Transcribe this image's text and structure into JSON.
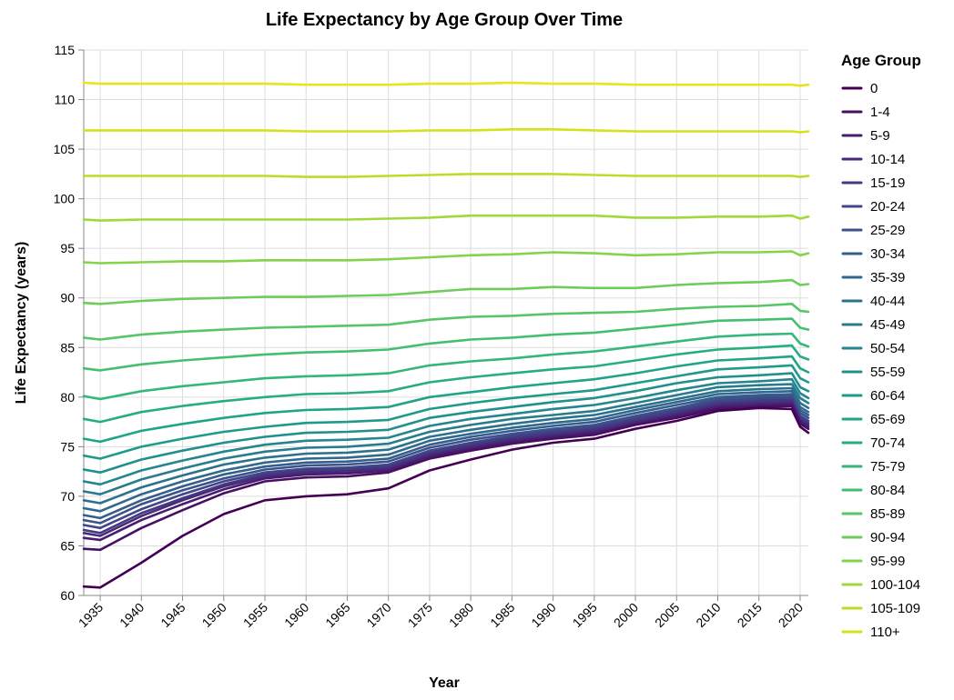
{
  "chart_data": {
    "type": "line",
    "title": "Life Expectancy by Age Group Over Time",
    "xlabel": "Year",
    "ylabel": "Life Expectancy (years)",
    "xlim": [
      1933,
      2021
    ],
    "ylim": [
      60,
      115
    ],
    "x_ticks": [
      1935,
      1940,
      1945,
      1950,
      1955,
      1960,
      1965,
      1970,
      1975,
      1980,
      1985,
      1990,
      1995,
      2000,
      2005,
      2010,
      2015,
      2020
    ],
    "y_ticks": [
      60,
      65,
      70,
      75,
      80,
      85,
      90,
      95,
      100,
      105,
      110,
      115
    ],
    "grid": true,
    "legend": {
      "title": "Age Group",
      "position": "right"
    },
    "x": [
      1933,
      1935,
      1940,
      1945,
      1950,
      1955,
      1960,
      1965,
      1970,
      1975,
      1980,
      1985,
      1990,
      1995,
      2000,
      2005,
      2010,
      2015,
      2019,
      2020,
      2021
    ],
    "series": [
      {
        "name": "0",
        "color": "#440154",
        "values": [
          60.9,
          60.8,
          63.3,
          66.0,
          68.2,
          69.6,
          70.0,
          70.2,
          70.8,
          72.6,
          73.7,
          74.7,
          75.4,
          75.8,
          76.8,
          77.6,
          78.6,
          78.9,
          78.8,
          77.0,
          76.4
        ]
      },
      {
        "name": "1-4",
        "color": "#471063",
        "values": [
          64.7,
          64.6,
          66.8,
          68.6,
          70.3,
          71.5,
          71.9,
          72.0,
          72.4,
          73.8,
          74.6,
          75.3,
          75.8,
          76.2,
          77.2,
          77.9,
          78.8,
          79.0,
          79.1,
          77.3,
          76.8
        ]
      },
      {
        "name": "5-9",
        "color": "#481d6f",
        "values": [
          65.8,
          65.6,
          67.6,
          69.2,
          70.7,
          71.8,
          72.2,
          72.3,
          72.6,
          74.0,
          74.8,
          75.5,
          76.0,
          76.4,
          77.3,
          78.1,
          79.0,
          79.2,
          79.3,
          77.5,
          77.0
        ]
      },
      {
        "name": "10-14",
        "color": "#472c7a",
        "values": [
          66.3,
          66.0,
          68.0,
          69.6,
          71.0,
          72.0,
          72.4,
          72.5,
          72.8,
          74.2,
          75.0,
          75.7,
          76.2,
          76.6,
          77.5,
          78.3,
          79.2,
          79.4,
          79.5,
          77.7,
          77.2
        ]
      },
      {
        "name": "15-19",
        "color": "#443983",
        "values": [
          66.6,
          66.3,
          68.3,
          69.8,
          71.2,
          72.2,
          72.6,
          72.7,
          73.0,
          74.4,
          75.2,
          75.9,
          76.4,
          76.8,
          77.7,
          78.5,
          79.4,
          79.6,
          79.7,
          77.9,
          77.4
        ]
      },
      {
        "name": "20-24",
        "color": "#3f4788",
        "values": [
          67.1,
          66.8,
          68.7,
          70.2,
          71.5,
          72.4,
          72.8,
          72.9,
          73.2,
          74.6,
          75.4,
          76.1,
          76.6,
          77.0,
          77.9,
          78.7,
          79.6,
          79.8,
          79.9,
          78.1,
          77.6
        ]
      },
      {
        "name": "25-29",
        "color": "#3b528b",
        "values": [
          67.6,
          67.3,
          69.2,
          70.6,
          71.8,
          72.7,
          73.1,
          73.2,
          73.5,
          74.9,
          75.7,
          76.3,
          76.8,
          77.2,
          78.1,
          78.9,
          79.8,
          80.0,
          80.1,
          78.4,
          77.9
        ]
      },
      {
        "name": "30-34",
        "color": "#355e8d",
        "values": [
          68.1,
          67.8,
          69.6,
          71.0,
          72.2,
          73.0,
          73.4,
          73.5,
          73.8,
          75.2,
          76.0,
          76.6,
          77.1,
          77.5,
          78.4,
          79.2,
          80.0,
          80.2,
          80.3,
          78.7,
          78.2
        ]
      },
      {
        "name": "35-39",
        "color": "#31688e",
        "values": [
          68.8,
          68.5,
          70.2,
          71.5,
          72.6,
          73.4,
          73.8,
          73.9,
          74.2,
          75.6,
          76.3,
          76.9,
          77.4,
          77.8,
          78.7,
          79.5,
          80.3,
          80.5,
          80.6,
          79.0,
          78.5
        ]
      },
      {
        "name": "40-44",
        "color": "#2c728e",
        "values": [
          69.6,
          69.3,
          70.9,
          72.1,
          73.2,
          73.9,
          74.3,
          74.4,
          74.7,
          76.0,
          76.7,
          77.3,
          77.8,
          78.2,
          79.0,
          79.8,
          80.6,
          80.8,
          80.9,
          79.4,
          78.9
        ]
      },
      {
        "name": "45-49",
        "color": "#287c8e",
        "values": [
          70.5,
          70.2,
          71.7,
          72.8,
          73.8,
          74.5,
          74.9,
          75.0,
          75.3,
          76.5,
          77.2,
          77.8,
          78.2,
          78.6,
          79.4,
          80.2,
          81.0,
          81.2,
          81.3,
          79.9,
          79.4
        ]
      },
      {
        "name": "50-54",
        "color": "#24868e",
        "values": [
          71.5,
          71.2,
          72.6,
          73.6,
          74.5,
          75.2,
          75.6,
          75.7,
          75.9,
          77.1,
          77.8,
          78.3,
          78.8,
          79.2,
          79.9,
          80.7,
          81.4,
          81.6,
          81.8,
          80.4,
          79.9
        ]
      },
      {
        "name": "55-59",
        "color": "#21908c",
        "values": [
          72.7,
          72.4,
          73.7,
          74.6,
          75.4,
          76.0,
          76.4,
          76.5,
          76.7,
          77.9,
          78.5,
          79.0,
          79.5,
          79.9,
          80.6,
          81.4,
          82.0,
          82.2,
          82.4,
          81.0,
          80.6
        ]
      },
      {
        "name": "60-64",
        "color": "#1f9a8a",
        "values": [
          74.1,
          73.8,
          75.0,
          75.8,
          76.5,
          77.0,
          77.4,
          77.5,
          77.7,
          78.8,
          79.4,
          79.9,
          80.3,
          80.7,
          81.4,
          82.1,
          82.8,
          83.0,
          83.2,
          81.9,
          81.5
        ]
      },
      {
        "name": "65-69",
        "color": "#20a486",
        "values": [
          75.8,
          75.5,
          76.6,
          77.3,
          77.9,
          78.4,
          78.7,
          78.8,
          79.0,
          80.0,
          80.5,
          81.0,
          81.4,
          81.8,
          82.4,
          83.1,
          83.7,
          83.9,
          84.1,
          82.9,
          82.5
        ]
      },
      {
        "name": "70-74",
        "color": "#27ad81",
        "values": [
          77.8,
          77.5,
          78.5,
          79.1,
          79.6,
          80.0,
          80.3,
          80.4,
          80.6,
          81.5,
          82.0,
          82.4,
          82.8,
          83.1,
          83.7,
          84.3,
          84.8,
          85.0,
          85.2,
          84.1,
          83.8
        ]
      },
      {
        "name": "75-79",
        "color": "#35b779",
        "values": [
          80.1,
          79.8,
          80.6,
          81.1,
          81.5,
          81.9,
          82.1,
          82.2,
          82.4,
          83.2,
          83.6,
          83.9,
          84.3,
          84.6,
          85.1,
          85.6,
          86.1,
          86.3,
          86.4,
          85.4,
          85.1
        ]
      },
      {
        "name": "80-84",
        "color": "#44bf70",
        "values": [
          82.9,
          82.7,
          83.3,
          83.7,
          84.0,
          84.3,
          84.5,
          84.6,
          84.8,
          85.4,
          85.8,
          86.0,
          86.3,
          86.5,
          86.9,
          87.3,
          87.7,
          87.8,
          87.9,
          87.0,
          86.8
        ]
      },
      {
        "name": "85-89",
        "color": "#56c667",
        "values": [
          86.0,
          85.8,
          86.3,
          86.6,
          86.8,
          87.0,
          87.1,
          87.2,
          87.3,
          87.8,
          88.1,
          88.2,
          88.4,
          88.5,
          88.6,
          88.9,
          89.1,
          89.2,
          89.4,
          88.7,
          88.6
        ]
      },
      {
        "name": "90-94",
        "color": "#6ccd5a",
        "values": [
          89.5,
          89.4,
          89.7,
          89.9,
          90.0,
          90.1,
          90.1,
          90.2,
          90.3,
          90.6,
          90.9,
          90.9,
          91.1,
          91.0,
          91.0,
          91.3,
          91.5,
          91.6,
          91.8,
          91.3,
          91.4
        ]
      },
      {
        "name": "95-99",
        "color": "#84d44b",
        "values": [
          93.6,
          93.5,
          93.6,
          93.7,
          93.7,
          93.8,
          93.8,
          93.8,
          93.9,
          94.1,
          94.3,
          94.4,
          94.6,
          94.5,
          94.3,
          94.4,
          94.6,
          94.6,
          94.7,
          94.3,
          94.5
        ]
      },
      {
        "name": "100-104",
        "color": "#9fda3a",
        "values": [
          97.9,
          97.8,
          97.9,
          97.9,
          97.9,
          97.9,
          97.9,
          97.9,
          98.0,
          98.1,
          98.3,
          98.3,
          98.3,
          98.3,
          98.1,
          98.1,
          98.2,
          98.2,
          98.3,
          98.0,
          98.2
        ]
      },
      {
        "name": "105-109",
        "color": "#bade28",
        "values": [
          102.3,
          102.3,
          102.3,
          102.3,
          102.3,
          102.3,
          102.2,
          102.2,
          102.3,
          102.4,
          102.5,
          102.5,
          102.5,
          102.4,
          102.3,
          102.3,
          102.3,
          102.3,
          102.3,
          102.2,
          102.3
        ]
      },
      {
        "name": "110+",
        "color": "#d5e21a",
        "values": [
          106.9,
          106.9,
          106.9,
          106.9,
          106.9,
          106.9,
          106.8,
          106.8,
          106.8,
          106.9,
          106.9,
          107.0,
          107.0,
          106.9,
          106.8,
          106.8,
          106.8,
          106.8,
          106.8,
          106.7,
          106.8
        ]
      },
      {
        "name": "",
        "color": "#e8e419",
        "values": [
          111.7,
          111.6,
          111.6,
          111.6,
          111.6,
          111.6,
          111.5,
          111.5,
          111.5,
          111.6,
          111.6,
          111.7,
          111.6,
          111.6,
          111.5,
          111.5,
          111.5,
          111.5,
          111.5,
          111.4,
          111.5
        ]
      }
    ]
  }
}
